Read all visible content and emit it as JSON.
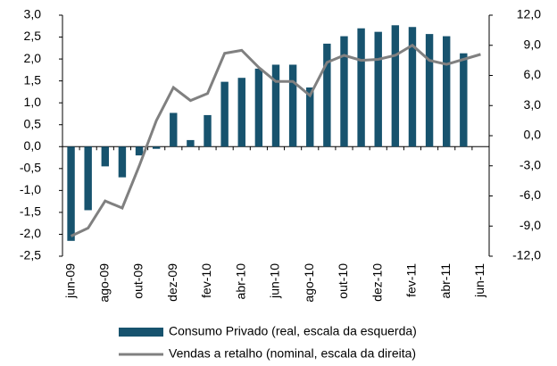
{
  "chart_data": {
    "type": "bar-line",
    "categories": [
      "jun-09",
      null,
      "ago-09",
      null,
      "out-09",
      null,
      "dez-09",
      null,
      "fev-10",
      null,
      "abr-10",
      null,
      "jun-10",
      null,
      "ago-10",
      null,
      "out-10",
      null,
      "dez-10",
      null,
      "fev-11",
      null,
      "abr-11",
      null,
      "jun-11"
    ],
    "series": [
      {
        "name": "Consumo Privado (real, escala da esquerda)",
        "color": "#17536e",
        "type": "bar",
        "axis": "y",
        "values": [
          -2.15,
          -1.45,
          -0.45,
          -0.7,
          -0.2,
          -0.05,
          0.77,
          0.15,
          0.72,
          1.48,
          1.57,
          1.78,
          1.87,
          1.87,
          1.35,
          2.35,
          2.52,
          2.7,
          2.62,
          2.77,
          2.73,
          2.57,
          2.52,
          2.13,
          null
        ]
      },
      {
        "name": "Vendas a retalho (nominal, escala da direita)",
        "color": "#808080",
        "type": "line",
        "axis": "y2",
        "values": [
          -10,
          -9.2,
          -6.5,
          -7.2,
          -3,
          1.5,
          4.8,
          3.5,
          4.2,
          8.2,
          8.5,
          6.8,
          5.4,
          5.4,
          4.0,
          7.3,
          8.0,
          7.5,
          7.6,
          8.0,
          9.0,
          7.5,
          7.1,
          7.6,
          8.1
        ]
      }
    ],
    "ylim": [
      -2.5,
      3.0
    ],
    "yticks": [
      {
        "value": -2.5,
        "label": "-2,5"
      },
      {
        "value": -2,
        "label": "-2,0"
      },
      {
        "value": -1.5,
        "label": "-1,5"
      },
      {
        "value": -1,
        "label": "-1,0"
      },
      {
        "value": -0.5,
        "label": "-0,5"
      },
      {
        "value": 0,
        "label": "0,0"
      },
      {
        "value": 0.5,
        "label": "0,5"
      },
      {
        "value": 1,
        "label": "1,0"
      },
      {
        "value": 1.5,
        "label": "1,5"
      },
      {
        "value": 2,
        "label": "2,0"
      },
      {
        "value": 2.5,
        "label": "2,5"
      },
      {
        "value": 3,
        "label": "3,0"
      }
    ],
    "y2lim": [
      -12,
      12
    ],
    "y2ticks": [
      {
        "value": -12,
        "label": "-12,0"
      },
      {
        "value": -9,
        "label": "-9,0"
      },
      {
        "value": -6,
        "label": "-6,0"
      },
      {
        "value": -3,
        "label": "-3,0"
      },
      {
        "value": 0,
        "label": "0,0"
      },
      {
        "value": 3,
        "label": "3,0"
      },
      {
        "value": 6,
        "label": "6,0"
      },
      {
        "value": 9,
        "label": "9,0"
      },
      {
        "value": 12,
        "label": "12,0"
      }
    ]
  }
}
